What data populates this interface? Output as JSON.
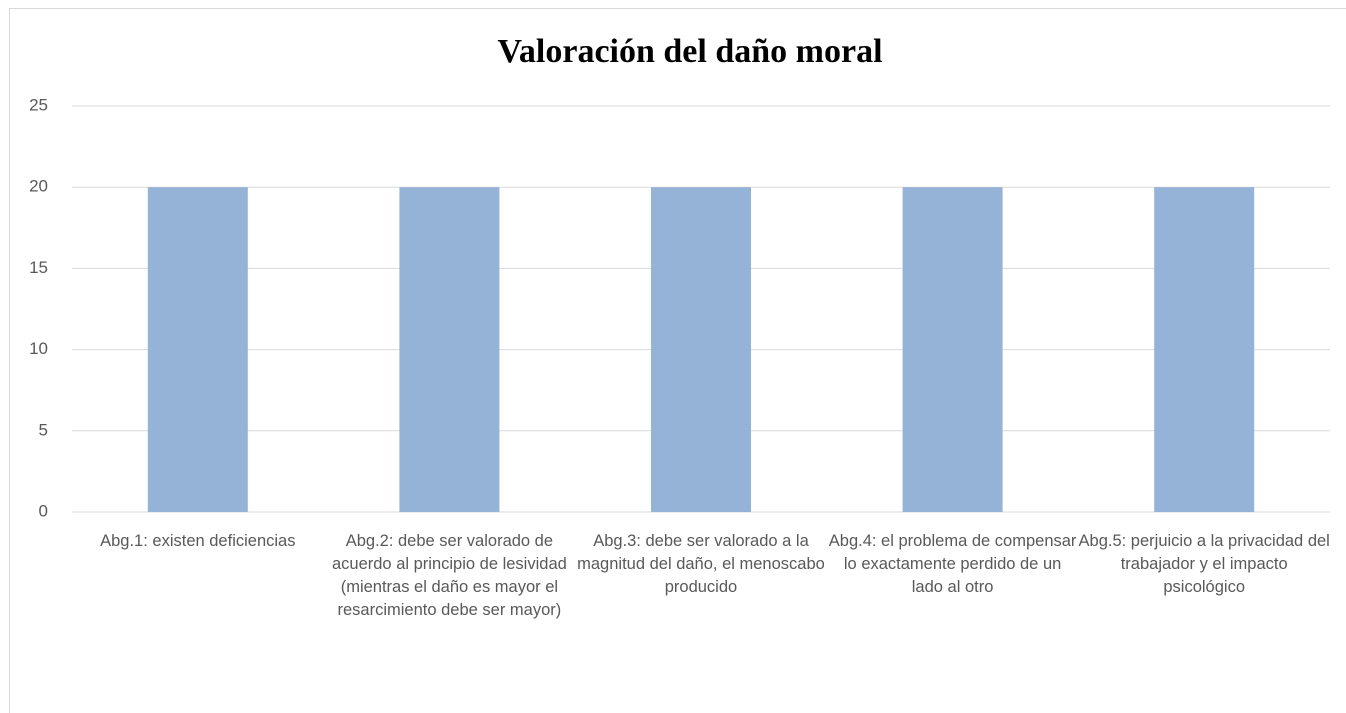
{
  "chart_data": {
    "type": "bar",
    "title": "Valoración del daño moral",
    "categories": [
      "Abg.1: existen deficiencias",
      "Abg.2: debe ser valorado de acuerdo al principio de lesividad (mientras el daño es mayor el resarcimiento debe ser mayor)",
      "Abg.3: debe ser valorado a la magnitud del daño, el menoscabo producido",
      "Abg.4: el problema de compensar lo exactamente perdido de un lado al otro",
      "Abg.5: perjuicio a la privacidad del trabajador y el impacto psicológico"
    ],
    "values": [
      20,
      20,
      20,
      20,
      20
    ],
    "color": "#95b3d7",
    "ylim": [
      0,
      25
    ],
    "yticks": [
      0,
      5,
      10,
      15,
      20,
      25
    ],
    "grid": true
  }
}
